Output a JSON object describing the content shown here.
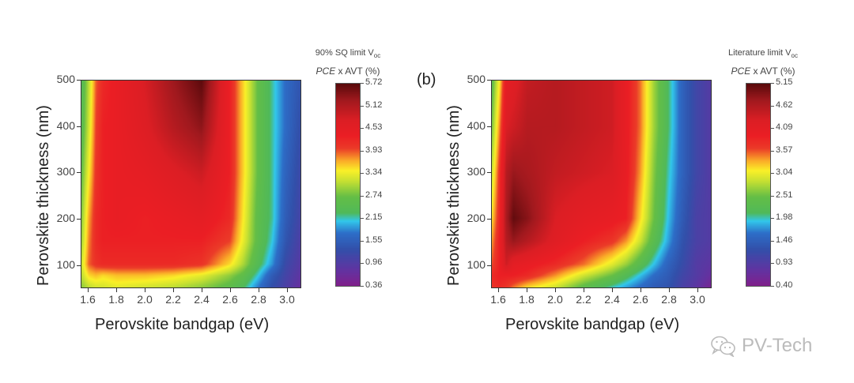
{
  "watermark": {
    "text": "PV-Tech",
    "icon": "wechat-icon"
  },
  "chart_data": [
    {
      "type": "heatmap",
      "panel_label": "",
      "xlabel": "Perovskite bandgap (eV)",
      "ylabel": "Perovskite thickness (nm)",
      "xlim": [
        1.55,
        3.1
      ],
      "ylim": [
        50,
        500
      ],
      "xticks": [
        "1.6",
        "1.8",
        "2.0",
        "2.2",
        "2.4",
        "2.6",
        "2.8",
        "3.0"
      ],
      "xtick_values": [
        1.6,
        1.8,
        2.0,
        2.2,
        2.4,
        2.6,
        2.8,
        3.0
      ],
      "yticks": [
        "100",
        "200",
        "300",
        "400",
        "500"
      ],
      "ytick_values": [
        100,
        200,
        300,
        400,
        500
      ],
      "colorbar": {
        "title_line1": "90% SQ limit V",
        "title_sub": "oc",
        "title_line2_italic": "PCE",
        "title_line2_rest": " x AVT (%)",
        "ticks": [
          "5.72",
          "5.12",
          "4.53",
          "3.93",
          "3.34",
          "2.74",
          "2.15",
          "1.55",
          "0.96",
          "0.36"
        ],
        "range": [
          0.36,
          5.72
        ]
      },
      "x": [
        1.55,
        1.6,
        1.65,
        1.7,
        1.8,
        2.0,
        2.2,
        2.4,
        2.6,
        2.7,
        2.8,
        2.9,
        3.0,
        3.1
      ],
      "y": [
        50,
        75,
        100,
        150,
        200,
        300,
        400,
        500
      ],
      "z": [
        [
          2.9,
          3.1,
          3.2,
          3.2,
          3.3,
          3.2,
          3.1,
          2.9,
          2.6,
          2.3,
          1.8,
          1.3,
          1.0,
          0.7
        ],
        [
          3.1,
          3.5,
          3.6,
          3.5,
          3.6,
          3.6,
          3.5,
          3.3,
          2.9,
          2.6,
          2.1,
          1.5,
          1.1,
          0.8
        ],
        [
          3.2,
          3.9,
          4.1,
          4.2,
          4.2,
          4.2,
          4.2,
          4.1,
          3.5,
          3.0,
          2.4,
          1.9,
          1.2,
          0.9
        ],
        [
          3.0,
          3.8,
          4.2,
          4.3,
          4.3,
          4.3,
          4.3,
          4.3,
          4.0,
          3.3,
          2.6,
          2.1,
          1.4,
          1.0
        ],
        [
          2.9,
          3.7,
          4.2,
          4.3,
          4.4,
          4.3,
          4.4,
          4.5,
          4.2,
          3.4,
          2.6,
          2.2,
          1.5,
          1.1
        ],
        [
          2.7,
          3.4,
          4.1,
          4.3,
          4.4,
          4.5,
          4.7,
          4.9,
          4.3,
          3.5,
          2.7,
          2.2,
          1.6,
          1.2
        ],
        [
          2.5,
          3.2,
          4.0,
          4.3,
          4.4,
          4.7,
          5.1,
          5.4,
          4.3,
          3.5,
          2.7,
          2.2,
          1.7,
          1.3
        ],
        [
          2.4,
          3.1,
          3.9,
          4.2,
          4.4,
          4.8,
          5.3,
          5.7,
          4.3,
          3.5,
          2.7,
          2.2,
          1.7,
          1.4
        ]
      ]
    },
    {
      "type": "heatmap",
      "panel_label": "(b)",
      "xlabel": "Perovskite bandgap (eV)",
      "ylabel": "Perovskite thickness (nm)",
      "xlim": [
        1.55,
        3.1
      ],
      "ylim": [
        50,
        500
      ],
      "xticks": [
        "1.6",
        "1.8",
        "2.0",
        "2.2",
        "2.4",
        "2.6",
        "2.8",
        "3.0"
      ],
      "xtick_values": [
        1.6,
        1.8,
        2.0,
        2.2,
        2.4,
        2.6,
        2.8,
        3.0
      ],
      "yticks": [
        "100",
        "200",
        "300",
        "400",
        "500"
      ],
      "ytick_values": [
        100,
        200,
        300,
        400,
        500
      ],
      "colorbar": {
        "title_line1": "Literature limit V",
        "title_sub": "oc",
        "title_line2_italic": "PCE",
        "title_line2_rest": " x AVT (%)",
        "ticks": [
          "5.15",
          "4.62",
          "4.09",
          "3.57",
          "3.04",
          "2.51",
          "1.98",
          "1.46",
          "0.93",
          "0.40"
        ],
        "range": [
          0.4,
          5.15
        ]
      },
      "x": [
        1.55,
        1.6,
        1.65,
        1.7,
        1.8,
        2.0,
        2.2,
        2.4,
        2.5,
        2.6,
        2.7,
        2.8,
        2.9,
        3.0,
        3.1
      ],
      "y": [
        50,
        75,
        100,
        150,
        200,
        300,
        400,
        500
      ],
      "z": [
        [
          3.7,
          3.8,
          3.7,
          3.5,
          3.2,
          2.9,
          2.4,
          2.0,
          1.8,
          1.6,
          1.4,
          1.3,
          1.0,
          0.8,
          0.5
        ],
        [
          3.8,
          3.9,
          3.9,
          3.9,
          3.8,
          3.4,
          2.9,
          2.5,
          2.2,
          1.9,
          1.6,
          1.4,
          1.1,
          0.9,
          0.7
        ],
        [
          3.6,
          3.9,
          4.4,
          4.1,
          4.0,
          3.8,
          3.5,
          3.0,
          2.7,
          2.3,
          1.9,
          1.5,
          1.2,
          0.9,
          0.8
        ],
        [
          3.4,
          3.9,
          4.6,
          4.8,
          4.6,
          4.2,
          3.9,
          3.7,
          3.4,
          2.9,
          2.3,
          1.8,
          1.3,
          1.0,
          0.9
        ],
        [
          3.2,
          3.8,
          4.7,
          5.1,
          4.9,
          4.3,
          4.1,
          4.0,
          3.9,
          3.2,
          2.5,
          1.9,
          1.4,
          1.0,
          0.9
        ],
        [
          2.9,
          3.7,
          4.6,
          4.8,
          4.7,
          4.5,
          4.4,
          4.3,
          4.0,
          3.4,
          2.6,
          2.0,
          1.5,
          1.1,
          0.9
        ],
        [
          2.6,
          3.4,
          4.3,
          4.4,
          4.6,
          4.6,
          4.5,
          4.4,
          4.0,
          3.5,
          2.7,
          2.1,
          1.5,
          1.1,
          0.9
        ],
        [
          2.4,
          3.1,
          4.1,
          4.2,
          4.5,
          4.6,
          4.5,
          4.4,
          4.0,
          3.5,
          2.7,
          2.1,
          1.5,
          1.1,
          0.9
        ]
      ]
    }
  ]
}
